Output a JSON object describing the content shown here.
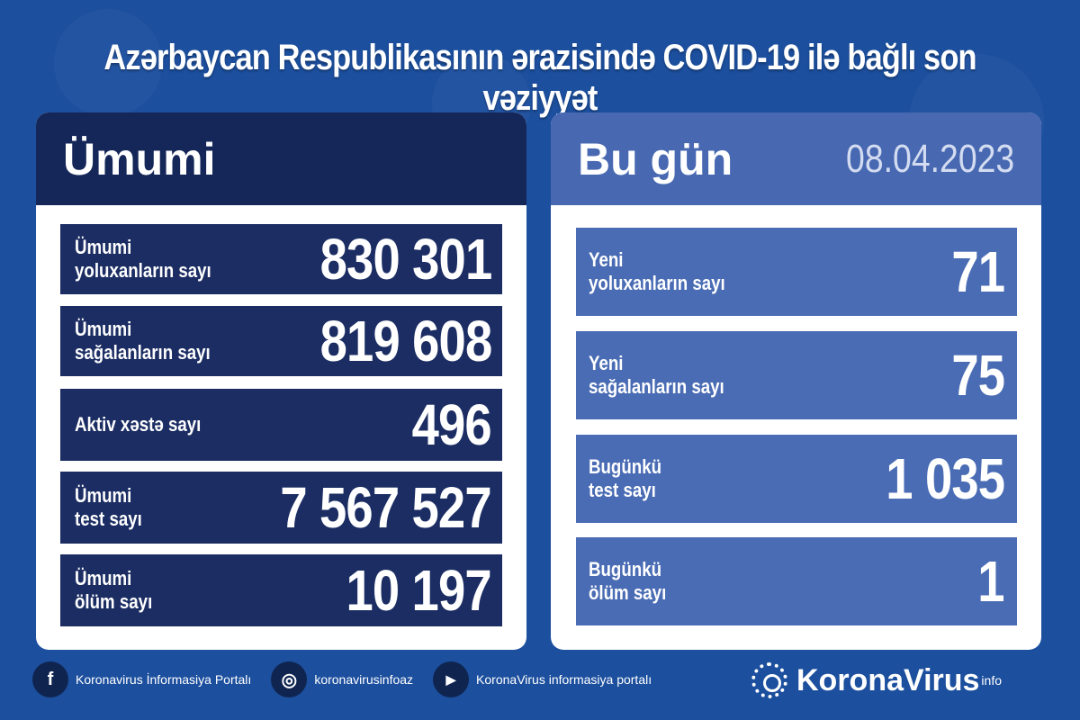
{
  "title": "Azərbaycan Respublikasının ərazisində COVID-19 ilə bağlı son vəziyyət",
  "total": {
    "heading": "Ümumi",
    "rows": [
      {
        "label1": "Ümumi",
        "label2": "yoluxanların sayı",
        "value": "830 301"
      },
      {
        "label1": "Ümumi",
        "label2": "sağalanların sayı",
        "value": "819 608"
      },
      {
        "label1": "Aktiv xəstə sayı",
        "label2": "",
        "value": "496"
      },
      {
        "label1": "Ümumi",
        "label2": "test sayı",
        "value": "7 567 527"
      },
      {
        "label1": "Ümumi",
        "label2": "ölüm sayı",
        "value": "10 197"
      }
    ]
  },
  "today": {
    "heading": "Bu gün",
    "date": "08.04.2023",
    "rows": [
      {
        "label1": "Yeni",
        "label2": "yoluxanların sayı",
        "value": "71"
      },
      {
        "label1": "Yeni",
        "label2": "sağalanların sayı",
        "value": "75"
      },
      {
        "label1": "Bugünkü",
        "label2": "test sayı",
        "value": "1 035"
      },
      {
        "label1": "Bugünkü",
        "label2": "ölüm sayı",
        "value": "1"
      }
    ]
  },
  "footer": {
    "facebook": "Koronavirus İnformasiya Portalı",
    "instagram": "koronavirusinfoaz",
    "youtube": "KoronaVirus informasiya portalı",
    "logo": "KoronaVirus",
    "logo_sup": "info"
  },
  "colors": {
    "background": "#1c4f9e",
    "left_header": "#152759",
    "left_rows": "#1b2d63",
    "right_header": "#4869b2",
    "right_rows": "#4a6cb4"
  }
}
